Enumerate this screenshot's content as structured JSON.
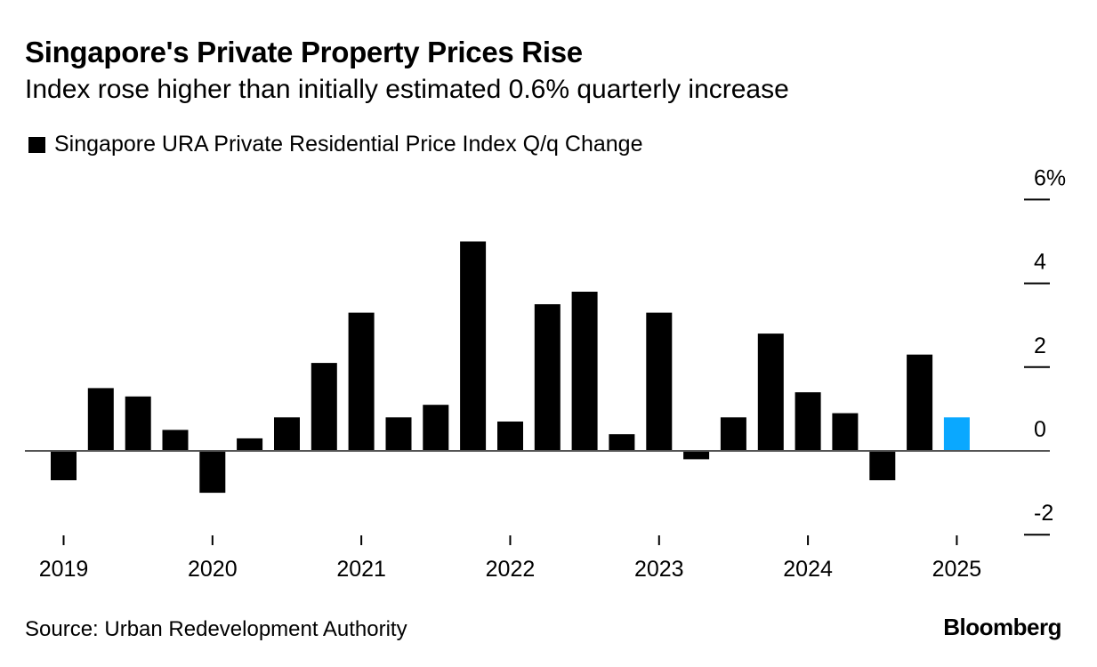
{
  "header": {
    "title": "Singapore's Private Property Prices Rise",
    "subtitle": "Index rose higher than initially estimated 0.6% quarterly increase"
  },
  "legend": {
    "label": "Singapore URA Private Residential Price Index Q/q Change",
    "swatch_color": "#000000"
  },
  "footer": {
    "source": "Source: Urban Redevelopment Authority",
    "brand": "Bloomberg"
  },
  "chart_data": {
    "type": "bar",
    "title": "Singapore's Private Property Prices Rise",
    "subtitle": "Index rose higher than initially estimated 0.6% quarterly increase",
    "xlabel": "",
    "ylabel": "",
    "ylim": [
      -2,
      6
    ],
    "y_ticks": [
      6,
      4,
      2,
      0,
      -2
    ],
    "y_tick_labels": [
      "6%",
      "4",
      "2",
      "0",
      "-2"
    ],
    "y_axis_side": "right",
    "x_tick_labels": [
      "2019",
      "2020",
      "2021",
      "2022",
      "2023",
      "2024",
      "2025"
    ],
    "legend_position": "top-left",
    "grid": false,
    "categories": [
      "2019 Q1",
      "2019 Q2",
      "2019 Q3",
      "2019 Q4",
      "2020 Q1",
      "2020 Q2",
      "2020 Q3",
      "2020 Q4",
      "2021 Q1",
      "2021 Q2",
      "2021 Q3",
      "2021 Q4",
      "2022 Q1",
      "2022 Q2",
      "2022 Q3",
      "2022 Q4",
      "2023 Q1",
      "2023 Q2",
      "2023 Q3",
      "2023 Q4",
      "2024 Q1",
      "2024 Q2",
      "2024 Q3",
      "2024 Q4",
      "2025 Q1"
    ],
    "series": [
      {
        "name": "Singapore URA Private Residential Price Index Q/q Change",
        "color": "#000000",
        "highlight_color": "#0AA8FF",
        "highlight_index": 24,
        "values": [
          -0.7,
          1.5,
          1.3,
          0.5,
          -1.0,
          0.3,
          0.8,
          2.1,
          3.3,
          0.8,
          1.1,
          5.0,
          0.7,
          3.5,
          3.8,
          0.4,
          3.3,
          -0.2,
          0.8,
          2.8,
          1.4,
          0.9,
          -0.7,
          2.3,
          0.8
        ]
      }
    ]
  }
}
